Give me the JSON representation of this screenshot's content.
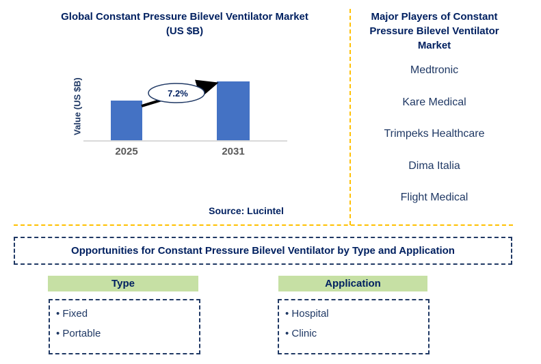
{
  "chart_data": {
    "type": "bar",
    "title": "Global Constant Pressure Bilevel Ventilator Market (US $B)",
    "ylabel": "Value (US $B)",
    "categories": [
      "2025",
      "2031"
    ],
    "values": [
      1.0,
      1.48
    ],
    "values_note": "value axis unlabeled; bar heights are relative, 2031 is ~1.48x 2025 implying the annotated 7.2% CAGR",
    "annotation": "7.2%",
    "source": "Source: Lucintel",
    "bar_color": "#4472C4",
    "grid": false,
    "legend": false,
    "ylim_relative": [
      0,
      1.48
    ]
  },
  "players": {
    "title": "Major Players of Constant Pressure Bilevel Ventilator Market",
    "items": [
      "Medtronic",
      "Kare Medical",
      "Trimpeks Healthcare",
      "Dima Italia",
      "Flight Medical"
    ]
  },
  "opportunities": {
    "banner": "Opportunities for Constant Pressure Bilevel Ventilator by Type and Application",
    "columns": [
      {
        "header": "Type",
        "items": [
          "Fixed",
          "Portable"
        ]
      },
      {
        "header": "Application",
        "items": [
          "Hospital",
          "Clinic"
        ]
      }
    ]
  },
  "colors": {
    "heading_navy": "#002060",
    "item_navy": "#1F3864",
    "bar_blue": "#4472C4",
    "divider_yellow": "#FFC000",
    "header_green": "#C6E0A4",
    "axis_gray": "#D9D9D9",
    "tick_gray": "#595959"
  }
}
